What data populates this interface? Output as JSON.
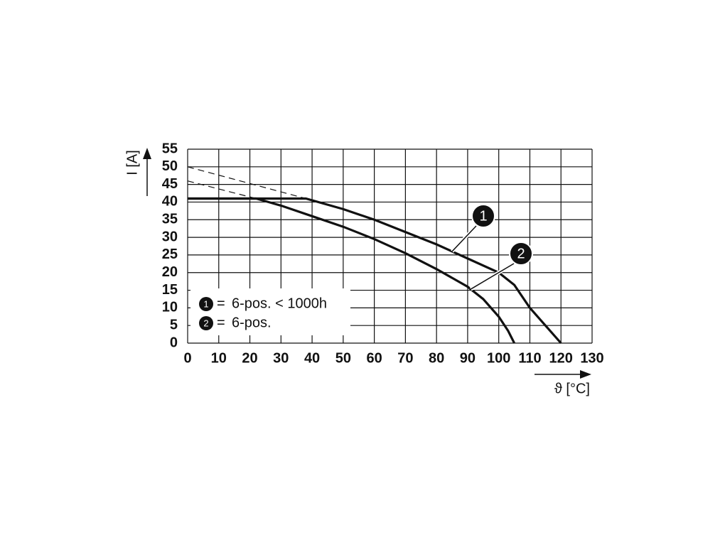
{
  "chart_data": {
    "type": "line",
    "y_label": "I [A]",
    "x_label": "ϑ [°C]",
    "xlim": [
      0,
      130
    ],
    "xticks": [
      0,
      10,
      20,
      30,
      40,
      50,
      60,
      70,
      80,
      90,
      100,
      110,
      120,
      130
    ],
    "ylim": [
      0,
      55
    ],
    "yticks": [
      0,
      5,
      10,
      15,
      20,
      25,
      30,
      35,
      40,
      45,
      50,
      55
    ],
    "grid": true,
    "legend_separator": "=",
    "series": [
      {
        "name": "6-pos. < 1000h",
        "label": "1",
        "color": "#111111",
        "x": [
          0,
          38,
          50,
          60,
          70,
          80,
          90,
          100,
          105,
          110,
          115,
          120
        ],
        "values": [
          41,
          41,
          38,
          35,
          31.5,
          28,
          24,
          20,
          16.5,
          10,
          5,
          0
        ],
        "dashed_x": [
          0,
          38
        ],
        "dashed_values": [
          50,
          41
        ]
      },
      {
        "name": "6-pos.",
        "label": "2",
        "color": "#111111",
        "x": [
          0,
          22,
          30,
          40,
          50,
          60,
          70,
          80,
          90,
          95,
          100,
          103,
          105
        ],
        "values": [
          41,
          41,
          39,
          36,
          33,
          29.5,
          25.5,
          21,
          16,
          12.5,
          7.5,
          3.5,
          0
        ],
        "dashed_x": [
          0,
          22
        ],
        "dashed_values": [
          46,
          41
        ]
      }
    ]
  }
}
